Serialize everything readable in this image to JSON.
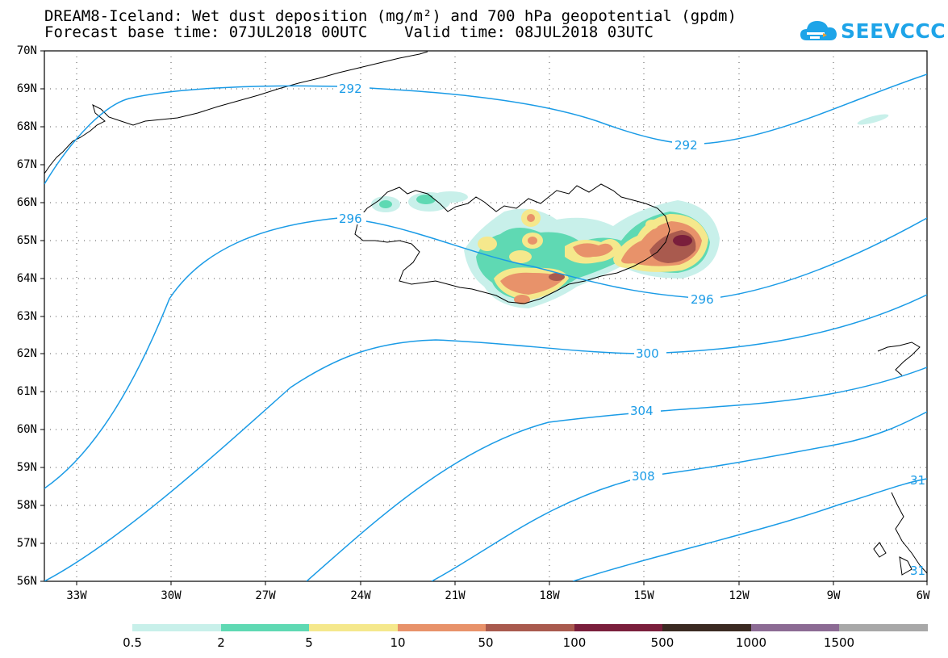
{
  "title": {
    "line1": "DREAM8-Iceland: Wet dust deposition (mg/m²) and 700 hPa geopotential (gpdm)",
    "line2": "Forecast base time: 07JUL2018 00UTC    Valid time: 08JUL2018 03UTC"
  },
  "logo": {
    "text": "SEEVCCC",
    "icon": "cloud-icon",
    "color": "#1ea4e8"
  },
  "map": {
    "lat_labels": [
      "70N",
      "69N",
      "68N",
      "67N",
      "66N",
      "65N",
      "64N",
      "63N",
      "62N",
      "61N",
      "60N",
      "59N",
      "58N",
      "57N",
      "56N"
    ],
    "lon_labels": [
      "33W",
      "30W",
      "27W",
      "24W",
      "21W",
      "18W",
      "15W",
      "12W",
      "9W",
      "6W"
    ],
    "contour_color": "#1a9be6",
    "contour_labels": [
      "292",
      "292",
      "296",
      "296",
      "300",
      "304",
      "308",
      "31",
      "31"
    ]
  },
  "colorbar": {
    "labels": [
      "0.5",
      "2",
      "5",
      "10",
      "50",
      "100",
      "500",
      "1000",
      "1500"
    ],
    "colors": [
      "#c8f0ea",
      "#5fd9b3",
      "#f5e88c",
      "#e8926a",
      "#a95a4e",
      "#7a1f3c",
      "#3b2a22",
      "#8c6b94",
      "#a8a8a8"
    ]
  }
}
